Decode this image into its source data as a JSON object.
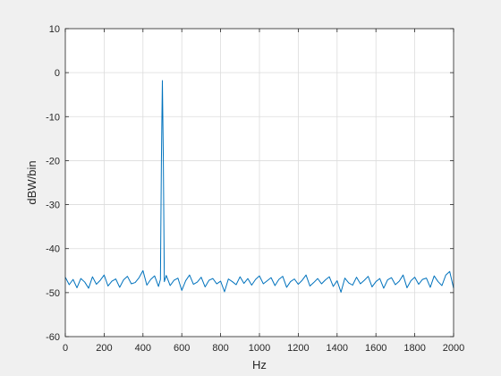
{
  "chart_data": {
    "type": "line",
    "title": "",
    "xlabel": "Hz",
    "ylabel": "dBW/bin",
    "xlim": [
      0,
      2000
    ],
    "ylim": [
      -60,
      10
    ],
    "xticks": [
      0,
      200,
      400,
      600,
      800,
      1000,
      1200,
      1400,
      1600,
      1800,
      2000
    ],
    "xtick_labels": [
      "0",
      "200",
      "400",
      "600",
      "800",
      "1000",
      "1200",
      "1400",
      "1600",
      "1800",
      "2000"
    ],
    "yticks": [
      -60,
      -50,
      -40,
      -30,
      -20,
      -10,
      0,
      10
    ],
    "ytick_labels": [
      "-60",
      "-50",
      "-40",
      "-30",
      "-20",
      "-10",
      "0",
      "10"
    ],
    "grid": true,
    "series": [
      {
        "color": "#0072bd",
        "noise_floor_db": -47.5,
        "peak": {
          "x": 500,
          "y": -1.8
        },
        "x": [
          0,
          20,
          40,
          60,
          80,
          100,
          120,
          140,
          160,
          180,
          200,
          220,
          240,
          260,
          280,
          300,
          320,
          340,
          360,
          380,
          400,
          420,
          440,
          460,
          480,
          490,
          495,
          500,
          505,
          510,
          520,
          540,
          560,
          580,
          600,
          620,
          640,
          660,
          680,
          700,
          720,
          740,
          760,
          780,
          800,
          820,
          840,
          860,
          880,
          900,
          920,
          940,
          960,
          980,
          1000,
          1020,
          1040,
          1060,
          1080,
          1100,
          1120,
          1140,
          1160,
          1180,
          1200,
          1220,
          1240,
          1260,
          1280,
          1300,
          1320,
          1340,
          1360,
          1380,
          1400,
          1420,
          1440,
          1460,
          1480,
          1500,
          1520,
          1540,
          1560,
          1580,
          1600,
          1620,
          1640,
          1660,
          1680,
          1700,
          1720,
          1740,
          1760,
          1780,
          1800,
          1820,
          1840,
          1860,
          1880,
          1900,
          1920,
          1940,
          1960,
          1980,
          2000
        ],
        "y": [
          -46.5,
          -48.2,
          -47.0,
          -48.9,
          -46.8,
          -47.6,
          -49.0,
          -46.4,
          -48.1,
          -47.2,
          -46.0,
          -48.5,
          -47.4,
          -46.9,
          -48.8,
          -47.1,
          -46.3,
          -48.0,
          -47.7,
          -46.6,
          -45.0,
          -48.3,
          -47.0,
          -46.2,
          -48.6,
          -47.0,
          -20.0,
          -1.8,
          -20.0,
          -47.5,
          -46.1,
          -48.4,
          -47.2,
          -46.7,
          -49.5,
          -47.3,
          -46.0,
          -48.1,
          -47.6,
          -46.5,
          -48.7,
          -47.2,
          -46.8,
          -48.0,
          -47.4,
          -49.8,
          -46.9,
          -47.5,
          -48.2,
          -46.4,
          -47.9,
          -46.8,
          -48.3,
          -47.0,
          -46.2,
          -48.0,
          -47.3,
          -46.6,
          -48.4,
          -47.0,
          -46.3,
          -48.8,
          -47.5,
          -46.9,
          -48.1,
          -47.2,
          -46.0,
          -48.5,
          -47.7,
          -46.8,
          -48.0,
          -47.1,
          -46.4,
          -48.6,
          -47.3,
          -49.9,
          -46.7,
          -47.8,
          -48.3,
          -46.5,
          -48.0,
          -47.2,
          -46.3,
          -48.7,
          -47.5,
          -46.8,
          -49.0,
          -47.1,
          -46.6,
          -48.2,
          -47.4,
          -46.0,
          -48.9,
          -47.3,
          -46.5,
          -48.1,
          -47.0,
          -46.7,
          -48.8,
          -46.2,
          -47.5,
          -48.4,
          -46.0,
          -45.2,
          -49.0
        ]
      }
    ]
  }
}
